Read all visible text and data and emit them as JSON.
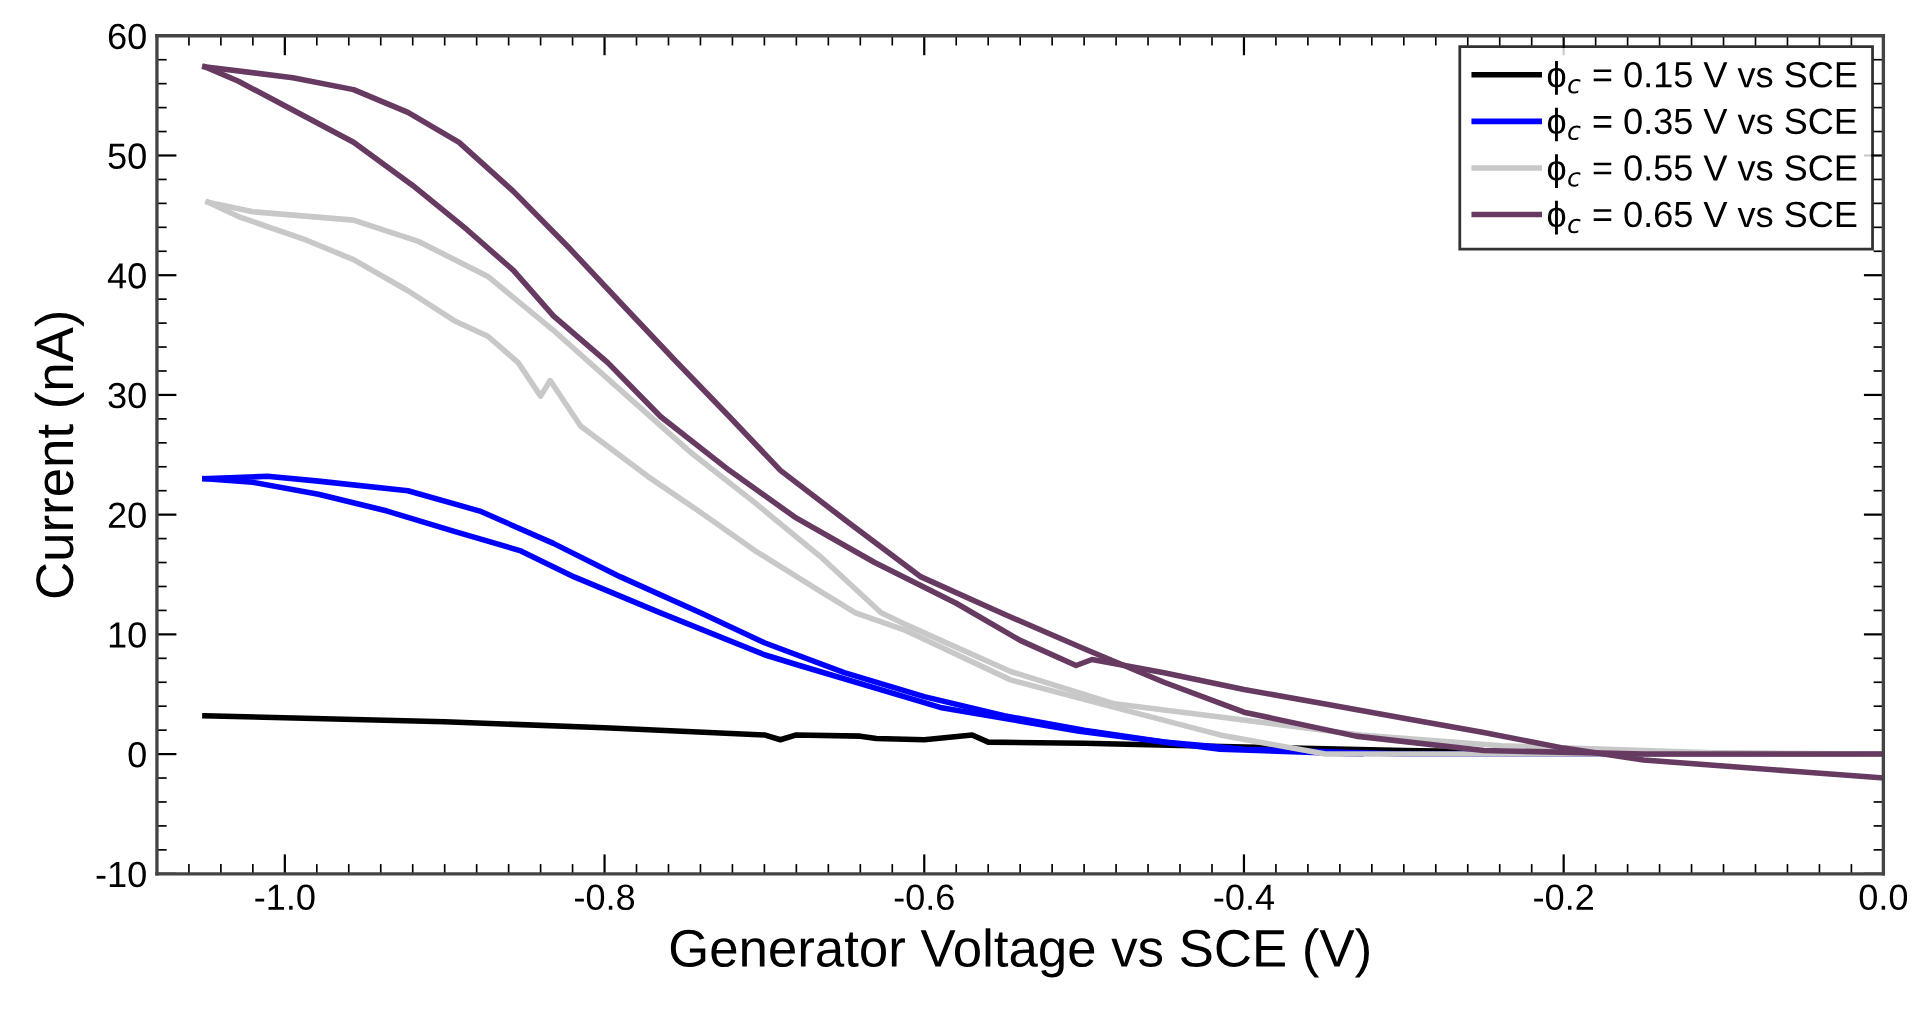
{
  "chart_data": {
    "type": "line",
    "xlabel": "Generator Voltage vs SCE (V)",
    "ylabel": "Current (nA)",
    "xlim": [
      -1.08,
      0.0
    ],
    "xticks": [
      {
        "value": -1.0,
        "label": "-1.0"
      },
      -0.8,
      -0.6,
      -0.4,
      -0.2,
      {
        "value": 0.0,
        "label": "0.0"
      }
    ],
    "ylim": [
      -10,
      60
    ],
    "yticks": [
      -10,
      0,
      10,
      20,
      30,
      40,
      50,
      60
    ],
    "grid": false,
    "legend": "top right",
    "marker": "none",
    "line_style": "solid",
    "series": [
      {
        "name": "ϕ$_{c}$ = 0.15 V vs SCE",
        "color": "#000000",
        "x": [
          -1.05,
          -0.9,
          -0.8,
          -0.7,
          -0.69,
          -0.68,
          -0.64,
          -0.63,
          -0.6,
          -0.57,
          -0.56,
          -0.5,
          -0.4,
          -0.3,
          -0.2,
          0.0
        ],
        "values": [
          3.2,
          2.7,
          2.2,
          1.6,
          1.2,
          1.6,
          1.5,
          1.3,
          1.2,
          1.6,
          1.0,
          0.9,
          0.6,
          0.3,
          0.1,
          0.0
        ]
      },
      {
        "name": "ϕ$_{c}$ = 0.35 V vs SCE",
        "color": "#0000ff",
        "x": [
          0.0,
          -0.3,
          -0.4,
          -0.45,
          -0.5,
          -0.55,
          -0.6,
          -0.65,
          -0.7,
          -0.74,
          -0.79,
          -0.832,
          -0.878,
          -0.923,
          -0.979,
          -1.011,
          -1.05
        ],
        "values": [
          0.0,
          0.0,
          0.4,
          1.0,
          2.0,
          3.2,
          4.8,
          6.8,
          9.3,
          11.8,
          14.8,
          17.6,
          20.3,
          22.0,
          22.8,
          23.2,
          23.0
        ]
      },
      {
        "color": "#0000ff",
        "x": [
          -1.05,
          -1.02,
          -0.979,
          -0.936,
          -0.894,
          -0.853,
          -0.819,
          -0.765,
          -0.7,
          -0.678,
          -0.59,
          -0.503,
          -0.415,
          -0.327
        ],
        "values": [
          23.0,
          22.7,
          21.7,
          20.3,
          18.6,
          17.0,
          14.8,
          11.8,
          8.3,
          7.4,
          3.9,
          1.9,
          0.4,
          0.0
        ]
      },
      {
        "name": "ϕ$_{c}$ = 0.55 V vs SCE",
        "color": "#c8c8c8",
        "x": [
          0.0,
          -0.107,
          -0.239,
          -0.327,
          -0.415,
          -0.481,
          -0.546,
          -0.613,
          -0.627,
          -0.665,
          -0.706,
          -0.747,
          -0.79,
          -0.832,
          -0.873,
          -0.916,
          -0.957,
          -1.02,
          -1.048
        ],
        "values": [
          0.0,
          0.1,
          0.7,
          1.6,
          3.1,
          4.2,
          6.9,
          10.9,
          11.8,
          16.5,
          21.0,
          25.3,
          30.4,
          35.4,
          39.9,
          42.8,
          44.6,
          45.3,
          46.1
        ]
      },
      {
        "color": "#c8c8c8",
        "x": [
          -1.048,
          -1.029,
          -0.986,
          -0.957,
          -0.923,
          -0.894,
          -0.873,
          -0.854,
          -0.84,
          -0.834,
          -0.815,
          -0.773,
          -0.74,
          -0.706,
          -0.665,
          -0.643,
          -0.613,
          -0.546,
          -0.481,
          -0.415,
          -0.349,
          0.0
        ],
        "values": [
          46.1,
          44.9,
          42.9,
          41.3,
          38.7,
          36.2,
          34.9,
          32.7,
          29.9,
          31.2,
          27.4,
          23.2,
          20.2,
          17.0,
          13.6,
          11.8,
          10.4,
          6.2,
          3.9,
          1.6,
          0.0,
          0.0
        ]
      },
      {
        "name": "ϕ$_{c}$ = 0.65 V vs SCE",
        "color": "#673a62",
        "x": [
          0.0,
          -0.15,
          -0.25,
          -0.33,
          -0.4,
          -0.45,
          -0.5,
          -0.552,
          -0.602,
          -0.647,
          -0.69,
          -0.722,
          -0.756,
          -0.79,
          -0.823,
          -0.857,
          -0.891,
          -0.923,
          -0.957,
          -0.995,
          -1.05
        ],
        "values": [
          0.0,
          0.0,
          0.3,
          1.5,
          3.5,
          6.0,
          8.8,
          11.8,
          14.8,
          19.3,
          23.7,
          28.2,
          32.9,
          37.7,
          42.4,
          47.0,
          51.1,
          53.6,
          55.5,
          56.5,
          57.4
        ]
      },
      {
        "color": "#673a62",
        "x": [
          -1.05,
          -1.029,
          -0.995,
          -0.957,
          -0.92,
          -0.886,
          -0.857,
          -0.832,
          -0.798,
          -0.765,
          -0.722,
          -0.681,
          -0.631,
          -0.58,
          -0.54,
          -0.505,
          -0.495,
          -0.45,
          -0.4,
          -0.35,
          -0.3,
          -0.25,
          -0.2,
          -0.15,
          -0.1,
          -0.05,
          0.0
        ],
        "values": [
          57.4,
          56.2,
          53.8,
          51.1,
          47.5,
          43.8,
          40.4,
          36.6,
          32.7,
          28.2,
          23.7,
          19.8,
          16.0,
          12.6,
          9.5,
          7.4,
          7.9,
          6.8,
          5.4,
          4.2,
          3.0,
          1.8,
          0.5,
          -0.5,
          -1.0,
          -1.5,
          -2.0
        ]
      }
    ]
  }
}
